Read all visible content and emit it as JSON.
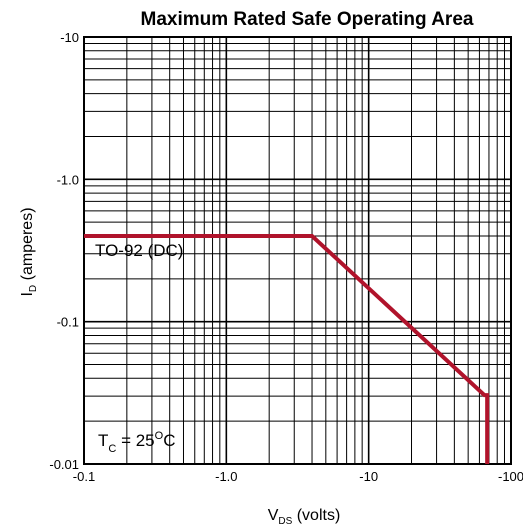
{
  "chart_data": {
    "type": "line",
    "title": "Maximum Rated Safe Operating Area",
    "xlabel": {
      "main": "V",
      "sub": "DS",
      "suffix": " (volts)"
    },
    "ylabel": {
      "main": "I",
      "sub": "D",
      "suffix": " (amperes)"
    },
    "x_scale": "log",
    "y_scale": "log",
    "xlim": [
      0.1,
      100
    ],
    "ylim": [
      0.01,
      10
    ],
    "grid": true,
    "x_ticks": [
      {
        "value": 0.1,
        "label": "-0.1"
      },
      {
        "value": 1,
        "label": "-1.0"
      },
      {
        "value": 10,
        "label": "-10"
      },
      {
        "value": 100,
        "label": "-100"
      }
    ],
    "y_ticks": [
      {
        "value": 0.01,
        "label": "-0.01"
      },
      {
        "value": 0.1,
        "label": "-0.1"
      },
      {
        "value": 1,
        "label": "-1.0"
      },
      {
        "value": 10,
        "label": "-10"
      }
    ],
    "series": [
      {
        "name": "TO-92 (DC)",
        "color": "#b0132b",
        "x": [
          0.1,
          4.0,
          65,
          68,
          68
        ],
        "y": [
          0.4,
          0.4,
          0.0305,
          0.0305,
          0.01
        ]
      }
    ],
    "annotations": {
      "series_label": "TO-92 (DC)",
      "temperature": {
        "main": "T",
        "sub": "C",
        "rest": " = 25",
        "sup": "O",
        "unit": "C"
      }
    }
  }
}
